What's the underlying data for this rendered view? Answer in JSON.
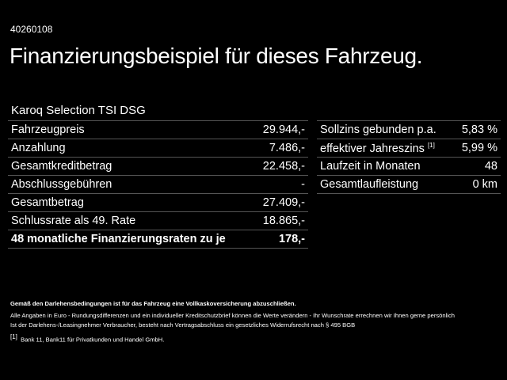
{
  "id": "40260108",
  "title": "Finanzierungsbeispiel für dieses Fahrzeug.",
  "model": "Karoq Selection TSI DSG",
  "left_rows": [
    {
      "label": "Fahrzeugpreis",
      "value": "29.944,-"
    },
    {
      "label": "Anzahlung",
      "value": "7.486,-"
    },
    {
      "label": "Gesamtkreditbetrag",
      "value": "22.458,-"
    },
    {
      "label": "Abschlussgebühren",
      "value": "-"
    },
    {
      "label": "Gesamtbetrag",
      "value": "27.409,-"
    },
    {
      "label": "Schlussrate als 49. Rate",
      "value": "18.865,-"
    },
    {
      "label": "48 monatliche Finanzierungsraten zu je",
      "value": "178,-"
    }
  ],
  "right_rows": [
    {
      "label": "Sollzins gebunden p.a.",
      "value": "5,83 %"
    },
    {
      "label": "effektiver Jahreszins",
      "sup": "[1]",
      "value": "5,99 %"
    },
    {
      "label": "Laufzeit in Monaten",
      "value": "48"
    },
    {
      "label": "Gesamtlaufleistung",
      "value": "0 km"
    }
  ],
  "notes": {
    "bold": "Gemäß den Darlehensbedingungen ist für das Fahrzeug eine Vollkaskoversicherung abzuschließen.",
    "line1": "Alle Angaben in Euro - Rundungsdifferenzen und ein individueller Kreditschutzbrief können die Werte verändern - Ihr Wunschrate errechnen wir Ihnen gerne persönlich",
    "line2": "Ist der Darlehens-/Leasingnehmer Verbraucher, besteht nach Vertragsabschluss ein gesetzliches Widerrufsrecht nach § 495 BGB",
    "footnote_mark": "[1]",
    "footnote": "Bank 11, Bank11 für Privatkunden und Handel GmbH."
  }
}
